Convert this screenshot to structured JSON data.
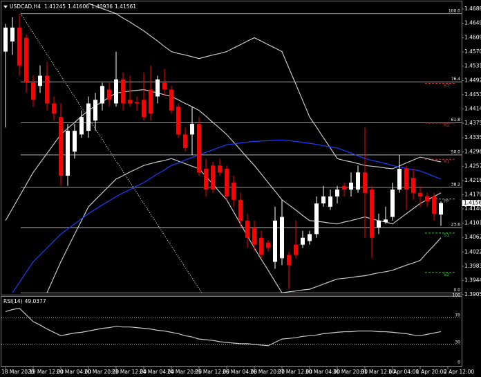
{
  "chart_data": {
    "type": "candlestick",
    "symbol": "USDCAD,H4",
    "up_color": "#ffffff",
    "down_color": "#ff0000",
    "open": [
      1.4571,
      1.4599,
      1.4637,
      1.4609,
      1.4486,
      1.4477,
      1.4505,
      1.4429,
      1.4392,
      1.4231,
      1.4297,
      1.4344,
      1.4354,
      1.4382,
      1.4429,
      1.4467,
      1.4429,
      1.4495,
      1.4439,
      1.4433,
      1.4439,
      1.4467,
      1.4448,
      1.4486,
      1.4467,
      1.442,
      1.4344,
      1.4344,
      1.4373,
      1.425,
      1.4259,
      1.4259,
      1.425,
      1.4212,
      1.4165,
      1.4108,
      1.4089,
      1.4061,
      1.4048,
      1.3995,
      1.4005,
      1.4014,
      1.4042,
      1.4042,
      1.4052,
      1.4071,
      1.4155,
      1.4146,
      1.4174,
      1.4203,
      1.4193,
      1.4193,
      1.424,
      1.4193,
      1.4089,
      1.4104,
      1.4118,
      1.4193,
      1.425,
      1.4225,
      1.4184,
      1.4174,
      1.4174,
      1.41245
    ],
    "high": [
      1.4647,
      1.4665,
      1.4675,
      1.4618,
      1.4505,
      1.4533,
      1.4543,
      1.4448,
      1.4429,
      1.4373,
      1.4373,
      1.441,
      1.4448,
      1.4458,
      1.4486,
      1.4486,
      1.4571,
      1.4514,
      1.4505,
      1.4448,
      1.4514,
      1.4533,
      1.4505,
      1.4524,
      1.4477,
      1.4429,
      1.4363,
      1.442,
      1.4392,
      1.4278,
      1.4269,
      1.4278,
      1.4259,
      1.4231,
      1.4184,
      1.4127,
      1.4108,
      1.408,
      1.4055,
      1.4146,
      1.4165,
      1.4023,
      1.4108,
      1.408,
      1.408,
      1.4174,
      1.4203,
      1.4193,
      1.4203,
      1.4212,
      1.424,
      1.4259,
      1.4363,
      1.4203,
      1.4127,
      1.4146,
      1.4212,
      1.4288,
      1.4259,
      1.425,
      1.4203,
      1.4184,
      1.4184,
      1.41606
    ],
    "low": [
      1.4363,
      1.4562,
      1.4505,
      1.4458,
      1.442,
      1.4458,
      1.441,
      1.4382,
      1.4203,
      1.4203,
      1.4278,
      1.4335,
      1.4335,
      1.4354,
      1.441,
      1.442,
      1.442,
      1.441,
      1.442,
      1.441,
      1.4382,
      1.4382,
      1.4429,
      1.4448,
      1.4401,
      1.4335,
      1.4297,
      1.4288,
      1.4231,
      1.4174,
      1.4184,
      1.4231,
      1.4165,
      1.4146,
      1.4089,
      1.4033,
      1.4023,
      1.4005,
      1.4023,
      1.3976,
      1.3986,
      1.392,
      1.4005,
      1.4033,
      1.4042,
      1.4061,
      1.4146,
      1.4137,
      1.4155,
      1.4174,
      1.4174,
      1.4184,
      1.4061,
      1.4005,
      1.4071,
      1.4099,
      1.4108,
      1.4184,
      1.4137,
      1.4165,
      1.4146,
      1.4146,
      1.4108,
      1.40936
    ],
    "close": [
      1.4637,
      1.4637,
      1.4533,
      1.4486,
      1.4439,
      1.4505,
      1.4429,
      1.4401,
      1.4231,
      1.4354,
      1.4354,
      1.4392,
      1.4429,
      1.4439,
      1.4477,
      1.4439,
      1.4495,
      1.4429,
      1.4429,
      1.4429,
      1.4392,
      1.4401,
      1.4495,
      1.4467,
      1.441,
      1.4344,
      1.4307,
      1.4373,
      1.424,
      1.4193,
      1.4193,
      1.424,
      1.4174,
      1.4165,
      1.4108,
      1.4061,
      1.4042,
      1.4014,
      1.4033,
      1.4108,
      1.4118,
      1.3986,
      1.4014,
      1.4061,
      1.4071,
      1.4155,
      1.4174,
      1.4174,
      1.4193,
      1.4193,
      1.4212,
      1.424,
      1.4184,
      1.4061,
      1.4108,
      1.4111,
      1.4193,
      1.425,
      1.4193,
      1.4184,
      1.4174,
      1.4161,
      1.4127,
      1.41561
    ],
    "overlays": [
      {
        "color": "#c8c8c8",
        "values": [
          null,
          null,
          null,
          null,
          null,
          null,
          null,
          null,
          null,
          null,
          null,
          null,
          1.4703,
          1.4696,
          1.4689,
          1.4682,
          1.4675,
          1.4663,
          1.4652,
          1.464,
          1.4628,
          1.4614,
          1.46,
          1.4585,
          1.4571,
          1.4566,
          1.4562,
          1.4557,
          1.4552,
          1.4557,
          1.4562,
          1.4566,
          1.4571,
          1.4581,
          1.459,
          1.46,
          1.4609,
          1.46,
          1.459,
          1.4581,
          1.4571,
          1.4526,
          1.4482,
          1.4437,
          1.4392,
          1.4364,
          1.4335,
          1.4307,
          1.4278,
          1.4273,
          1.4269,
          1.4264,
          1.4259,
          1.4257,
          1.4255,
          1.4252,
          1.425,
          1.4258,
          1.4266,
          1.4274,
          1.4282,
          1.4278,
          1.4273,
          1.4269
        ]
      },
      {
        "color": "#c8c8c8",
        "values": [
          1.4108,
          1.4141,
          1.4174,
          1.4207,
          1.424,
          1.4266,
          1.4292,
          1.4318,
          1.4344,
          1.4361,
          1.4377,
          1.4394,
          1.441,
          1.4422,
          1.4434,
          1.4446,
          1.4458,
          1.446,
          1.4463,
          1.4465,
          1.4467,
          1.4462,
          1.4458,
          1.4453,
          1.4448,
          1.4439,
          1.4429,
          1.442,
          1.441,
          1.4394,
          1.4377,
          1.4361,
          1.4344,
          1.4323,
          1.4302,
          1.428,
          1.4259,
          1.4236,
          1.4212,
          1.4189,
          1.4165,
          1.4151,
          1.4137,
          1.4122,
          1.4108,
          1.4106,
          1.4104,
          1.4101,
          1.4099,
          1.4104,
          1.4108,
          1.4113,
          1.4118,
          1.4113,
          1.4108,
          1.4104,
          1.4099,
          1.4113,
          1.4127,
          1.4141,
          1.4155,
          1.4165,
          1.4174,
          1.4184
        ]
      },
      {
        "color": "#c8c8c8",
        "values": [
          null,
          null,
          null,
          null,
          null,
          null,
          1.391,
          1.3953,
          1.3995,
          1.4033,
          1.4071,
          1.4108,
          1.4146,
          1.4165,
          1.4184,
          1.4203,
          1.4222,
          1.4231,
          1.4241,
          1.425,
          1.4259,
          1.4264,
          1.4269,
          1.4273,
          1.4278,
          1.4271,
          1.4264,
          1.4257,
          1.425,
          1.4229,
          1.4208,
          1.4186,
          1.4165,
          1.4132,
          1.4099,
          1.4066,
          1.4033,
          1.4002,
          1.3972,
          1.3941,
          1.391,
          1.3913,
          1.3915,
          1.3918,
          1.392,
          1.3927,
          1.3934,
          1.3941,
          1.3948,
          1.395,
          1.3952,
          1.3955,
          1.3957,
          1.3961,
          1.3965,
          1.3968,
          1.3972,
          1.3979,
          1.3986,
          1.3992,
          1.3999,
          1.402,
          1.404,
          1.4061
        ]
      },
      {
        "color": "#1e3cff",
        "values": [
          null,
          1.391,
          1.3938,
          1.3967,
          1.3995,
          1.4014,
          1.4033,
          1.4052,
          1.4071,
          1.4085,
          1.4099,
          1.4113,
          1.4127,
          1.4139,
          1.4151,
          1.4162,
          1.4174,
          1.4184,
          1.4193,
          1.4203,
          1.4212,
          1.4224,
          1.4236,
          1.4247,
          1.4259,
          1.4266,
          1.4274,
          1.4281,
          1.4288,
          1.4295,
          1.4302,
          1.4309,
          1.4316,
          1.4318,
          1.4321,
          1.4323,
          1.4325,
          1.4326,
          1.4327,
          1.4328,
          1.4329,
          1.4327,
          1.4325,
          1.4322,
          1.432,
          1.4317,
          1.4313,
          1.431,
          1.4307,
          1.43,
          1.4293,
          1.4285,
          1.4278,
          1.4273,
          1.4269,
          1.4264,
          1.4259,
          1.4255,
          1.4251,
          1.4248,
          1.4244,
          1.4237,
          1.4229,
          1.4222
        ]
      }
    ],
    "fib_color": "#c8c8c8",
    "fib_levels": [
      {
        "label": "100.0",
        "price": 1.4675
      },
      {
        "label": "76.4",
        "price": 1.4488
      },
      {
        "label": "61.8",
        "price": 1.4376
      },
      {
        "label": "50.0",
        "price": 1.4288
      },
      {
        "label": "38.2",
        "price": 1.4199
      },
      {
        "label": "23.6",
        "price": 1.4089
      },
      {
        "label": "0.0",
        "price": 1.391
      }
    ],
    "pivots": [
      {
        "label": "R3",
        "price": 1.4484,
        "color": "#c83232"
      },
      {
        "label": "R2",
        "price": 1.4375,
        "color": "#c83232"
      },
      {
        "label": "R1",
        "price": 1.4276,
        "color": "#c83232"
      },
      {
        "label": "PP",
        "price": 1.4167,
        "color": "#a0a0a0"
      },
      {
        "label": "S1",
        "price": 1.4074,
        "color": "#32c832"
      },
      {
        "label": "S2",
        "price": 1.3966,
        "color": "#32c832"
      }
    ],
    "ylim": [
      1.3905,
      1.4703
    ],
    "yticks": [
      {
        "value": 1.4688,
        "label": "1.46880"
      },
      {
        "value": 1.4649,
        "label": "1.46490"
      },
      {
        "value": 1.4609,
        "label": "1.46090"
      },
      {
        "value": 1.457,
        "label": "1.45700"
      },
      {
        "value": 1.4531,
        "label": "1.45310"
      },
      {
        "value": 1.4492,
        "label": "1.44920"
      },
      {
        "value": 1.4453,
        "label": "1.44530"
      },
      {
        "value": 1.4414,
        "label": "1.44140"
      },
      {
        "value": 1.4375,
        "label": "1.43750"
      },
      {
        "value": 1.4335,
        "label": "1.43350"
      },
      {
        "value": 1.4296,
        "label": "1.42960"
      },
      {
        "value": 1.4257,
        "label": "1.42570"
      },
      {
        "value": 1.4218,
        "label": "1.42180"
      },
      {
        "value": 1.4179,
        "label": "1.41790"
      },
      {
        "value": 1.414,
        "label": "1.41400"
      },
      {
        "value": 1.4101,
        "label": "1.41010"
      },
      {
        "value": 1.4062,
        "label": "1.40620"
      },
      {
        "value": 1.4022,
        "label": "1.40220"
      },
      {
        "value": 1.3983,
        "label": "1.39830"
      },
      {
        "value": 1.3944,
        "label": "1.39440"
      },
      {
        "value": 1.3905,
        "label": "1.39050"
      }
    ],
    "xlim": [
      -0.8,
      66
    ],
    "xticks": [
      {
        "value": 0,
        "label": "18 Mar 2020"
      },
      {
        "value": 4,
        "label": "19 Mar 12:00"
      },
      {
        "value": 8,
        "label": "20 Mar 04:00"
      },
      {
        "value": 12,
        "label": "20 Mar 20:00"
      },
      {
        "value": 16,
        "label": "23 Mar 12:00"
      },
      {
        "value": 20,
        "label": "24 Mar 04:00"
      },
      {
        "value": 24,
        "label": "24 Mar 20:00"
      },
      {
        "value": 28,
        "label": "25 Mar 12:00"
      },
      {
        "value": 32,
        "label": "26 Mar 04:00"
      },
      {
        "value": 36,
        "label": "26 Mar 20:00"
      },
      {
        "value": 40,
        "label": "27 Mar 12:00"
      },
      {
        "value": 44,
        "label": "30 Mar 04:00"
      },
      {
        "value": 48,
        "label": "30 Mar 20:00"
      },
      {
        "value": 52,
        "label": "31 Mar 12:00"
      },
      {
        "value": 56,
        "label": "1 Apr 04:00"
      },
      {
        "value": 60,
        "label": "1 Apr 20:00"
      },
      {
        "value": 64,
        "label": "2 Apr 12:00"
      }
    ],
    "rsi": {
      "name": "RSI(14)",
      "color": "#c8c8c8",
      "ylim": [
        0,
        100
      ],
      "yticks": [
        100,
        70,
        30,
        0
      ],
      "levels": [
        70,
        30
      ],
      "values": [
        79,
        82,
        84,
        74,
        64,
        59,
        53,
        48,
        43,
        45,
        47,
        48,
        50,
        52,
        54,
        55,
        57,
        56,
        56,
        55,
        54,
        53,
        51,
        50,
        48,
        46,
        43,
        41,
        38,
        37,
        36,
        34,
        33,
        32,
        31,
        31,
        30,
        29,
        28,
        33,
        38,
        39,
        40,
        42,
        43,
        44,
        46,
        47,
        48,
        49,
        49,
        50,
        50,
        50,
        49,
        49,
        48,
        47,
        46,
        44,
        43,
        45,
        47,
        49.0377
      ]
    }
  }
}
